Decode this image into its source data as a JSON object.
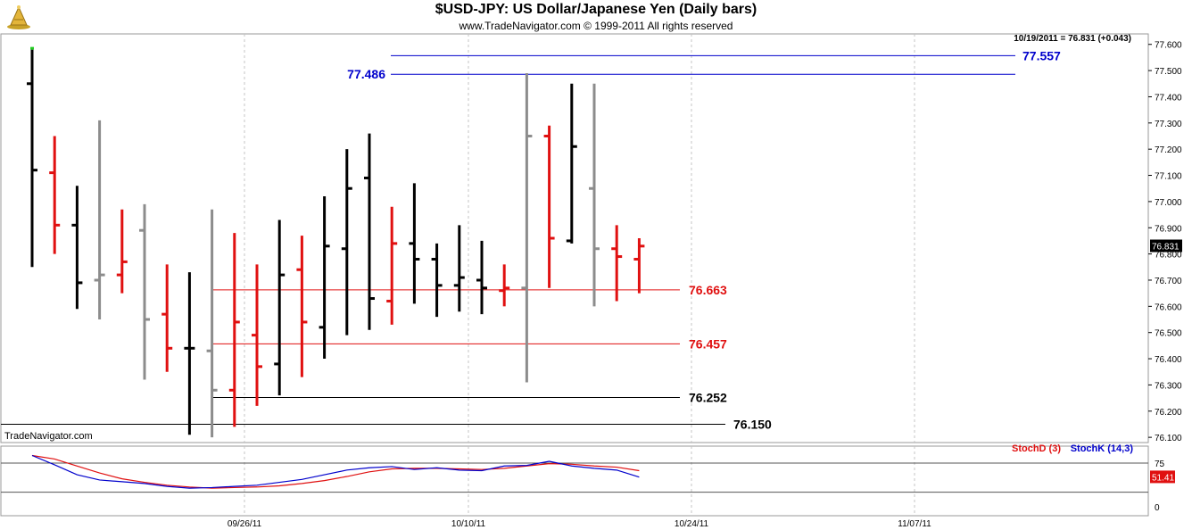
{
  "header": {
    "title": "$USD-JPY:  US Dollar/Japanese Yen  (Daily bars)",
    "subtitle": "www.TradeNavigator.com © 1999-2011 All rights reserved",
    "watermark": "TradeNavigator.com",
    "last_readout": "10/19/2011 = 76.831 (+0.043)"
  },
  "chart_data": [
    {
      "type": "ohlc",
      "ylim": [
        76.08,
        77.64
      ],
      "y_ticks": [
        "77.600",
        "77.500",
        "77.400",
        "77.300",
        "77.200",
        "77.100",
        "77.000",
        "76.900",
        "76.800",
        "76.700",
        "76.600",
        "76.500",
        "76.400",
        "76.300",
        "76.200",
        "76.100"
      ],
      "x_ticks": [
        "09/26/11",
        "10/10/11",
        "10/24/11",
        "11/07/11"
      ],
      "last_price": "76.831",
      "colors": {
        "up": "#000000",
        "down": "#e01010",
        "neutral": "#8c8c8c"
      },
      "bars": [
        {
          "date": "09/13",
          "open": 77.45,
          "high": 77.58,
          "low": 76.75,
          "close": 77.12,
          "dir": "up"
        },
        {
          "date": "09/14",
          "open": 77.11,
          "high": 77.25,
          "low": 76.8,
          "close": 76.91,
          "dir": "down"
        },
        {
          "date": "09/15",
          "open": 76.91,
          "high": 77.06,
          "low": 76.59,
          "close": 76.69,
          "dir": "up"
        },
        {
          "date": "09/16",
          "open": 76.7,
          "high": 77.31,
          "low": 76.55,
          "close": 76.72,
          "dir": "neutral"
        },
        {
          "date": "09/19",
          "open": 76.72,
          "high": 76.97,
          "low": 76.65,
          "close": 76.77,
          "dir": "down"
        },
        {
          "date": "09/20",
          "open": 76.89,
          "high": 76.99,
          "low": 76.32,
          "close": 76.55,
          "dir": "neutral"
        },
        {
          "date": "09/21",
          "open": 76.57,
          "high": 76.76,
          "low": 76.35,
          "close": 76.44,
          "dir": "down"
        },
        {
          "date": "09/22",
          "open": 76.44,
          "high": 76.73,
          "low": 76.11,
          "close": 76.44,
          "dir": "up"
        },
        {
          "date": "09/23",
          "open": 76.43,
          "high": 76.97,
          "low": 76.1,
          "close": 76.28,
          "dir": "neutral"
        },
        {
          "date": "09/26",
          "open": 76.28,
          "high": 76.88,
          "low": 76.14,
          "close": 76.54,
          "dir": "down"
        },
        {
          "date": "09/27",
          "open": 76.49,
          "high": 76.76,
          "low": 76.22,
          "close": 76.37,
          "dir": "down"
        },
        {
          "date": "09/28",
          "open": 76.38,
          "high": 76.93,
          "low": 76.26,
          "close": 76.72,
          "dir": "up"
        },
        {
          "date": "09/29",
          "open": 76.74,
          "high": 76.87,
          "low": 76.33,
          "close": 76.54,
          "dir": "down"
        },
        {
          "date": "09/30",
          "open": 76.52,
          "high": 77.02,
          "low": 76.4,
          "close": 76.83,
          "dir": "up"
        },
        {
          "date": "10/03",
          "open": 76.82,
          "high": 77.2,
          "low": 76.49,
          "close": 77.05,
          "dir": "up"
        },
        {
          "date": "10/04",
          "open": 77.09,
          "high": 77.26,
          "low": 76.51,
          "close": 76.63,
          "dir": "up"
        },
        {
          "date": "10/05",
          "open": 76.62,
          "high": 76.98,
          "low": 76.53,
          "close": 76.84,
          "dir": "down"
        },
        {
          "date": "10/06",
          "open": 76.84,
          "high": 77.07,
          "low": 76.61,
          "close": 76.78,
          "dir": "up"
        },
        {
          "date": "10/07",
          "open": 76.78,
          "high": 76.84,
          "low": 76.56,
          "close": 76.68,
          "dir": "up"
        },
        {
          "date": "10/10",
          "open": 76.68,
          "high": 76.91,
          "low": 76.58,
          "close": 76.71,
          "dir": "up"
        },
        {
          "date": "10/11",
          "open": 76.7,
          "high": 76.85,
          "low": 76.57,
          "close": 76.67,
          "dir": "up"
        },
        {
          "date": "10/12",
          "open": 76.66,
          "high": 76.76,
          "low": 76.6,
          "close": 76.67,
          "dir": "down"
        },
        {
          "date": "10/13",
          "open": 76.67,
          "high": 77.49,
          "low": 76.31,
          "close": 77.25,
          "dir": "neutral"
        },
        {
          "date": "10/14",
          "open": 77.25,
          "high": 77.29,
          "low": 76.67,
          "close": 76.86,
          "dir": "down"
        },
        {
          "date": "10/17",
          "open": 76.85,
          "high": 77.45,
          "low": 76.84,
          "close": 77.21,
          "dir": "up"
        },
        {
          "date": "10/18",
          "open": 77.05,
          "high": 77.45,
          "low": 76.6,
          "close": 76.82,
          "dir": "neutral"
        },
        {
          "date": "10/19a",
          "open": 76.82,
          "high": 76.91,
          "low": 76.62,
          "close": 76.79,
          "dir": "down"
        },
        {
          "date": "10/19",
          "open": 76.78,
          "high": 76.86,
          "low": 76.65,
          "close": 76.83,
          "dir": "down"
        }
      ],
      "levels": [
        {
          "value": 77.557,
          "label": "77.557",
          "color": "#0000cc",
          "x_start": "10/05"
        },
        {
          "value": 77.486,
          "label": "77.486",
          "color": "#0000cc",
          "x_start": "10/05"
        },
        {
          "value": 76.663,
          "label": "76.663",
          "color": "#e01010",
          "x_start": "09/23"
        },
        {
          "value": 76.457,
          "label": "76.457",
          "color": "#e01010",
          "x_start": "09/23"
        },
        {
          "value": 76.252,
          "label": "76.252",
          "color": "#000000",
          "x_start": "09/23"
        },
        {
          "value": 76.15,
          "label": "76.150",
          "color": "#000000",
          "x_start": "09/12"
        }
      ]
    },
    {
      "type": "line",
      "ylim": [
        0,
        100
      ],
      "y_ticks": [
        "75",
        "0"
      ],
      "last_value": "51.41",
      "series": [
        {
          "name": "StochD (3)",
          "color": "#e01010",
          "values": [
            88,
            82,
            70,
            58,
            48,
            42,
            37,
            34,
            32,
            33,
            34,
            36,
            40,
            45,
            52,
            60,
            65,
            66,
            66,
            65,
            64,
            66,
            70,
            74,
            73,
            70,
            68,
            62
          ]
        },
        {
          "name": "StochK (14,3)",
          "color": "#0000cc",
          "values": [
            88,
            72,
            55,
            46,
            43,
            40,
            35,
            32,
            33,
            35,
            37,
            42,
            47,
            55,
            63,
            67,
            69,
            64,
            67,
            63,
            62,
            70,
            71,
            78,
            70,
            66,
            63,
            51
          ]
        }
      ]
    }
  ]
}
